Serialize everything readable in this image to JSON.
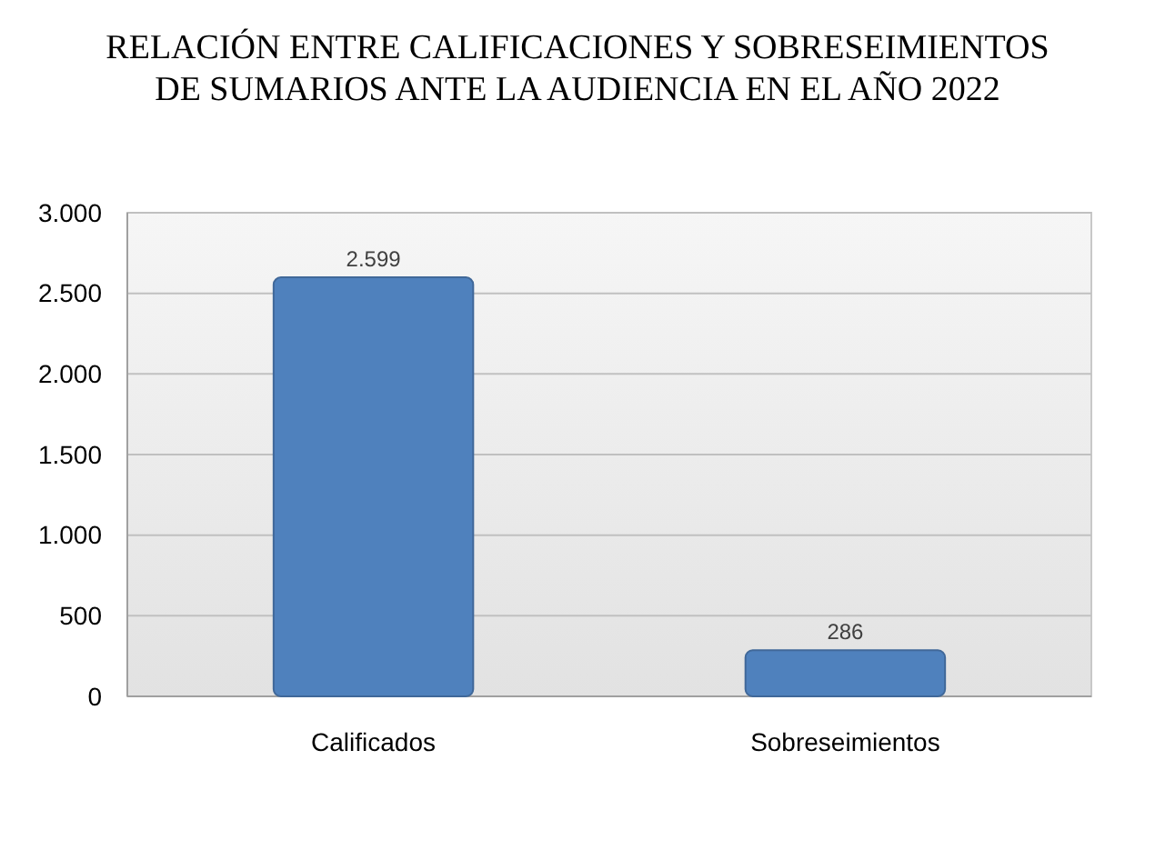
{
  "chart_data": {
    "type": "bar",
    "title": "RELACIÓN ENTRE CALIFICACIONES Y SOBRESEIMIENTOS\nDE SUMARIOS ANTE LA AUDIENCIA EN EL AÑO 2022",
    "categories": [
      "Calificados",
      "Sobreseimientos"
    ],
    "values": [
      2599,
      286
    ],
    "value_labels": [
      "2.599",
      "286"
    ],
    "color": "#4f81bd",
    "ylim": [
      0,
      3000
    ],
    "yticks": [
      0,
      500,
      {
        "value": 1000,
        "label": "1.000"
      },
      {
        "value": 1500,
        "label": "1.500"
      },
      {
        "value": 2000,
        "label": "2.000"
      },
      {
        "value": 2500,
        "label": "2.500"
      },
      {
        "value": 3000,
        "label": "3.000"
      }
    ],
    "grid": "y"
  }
}
